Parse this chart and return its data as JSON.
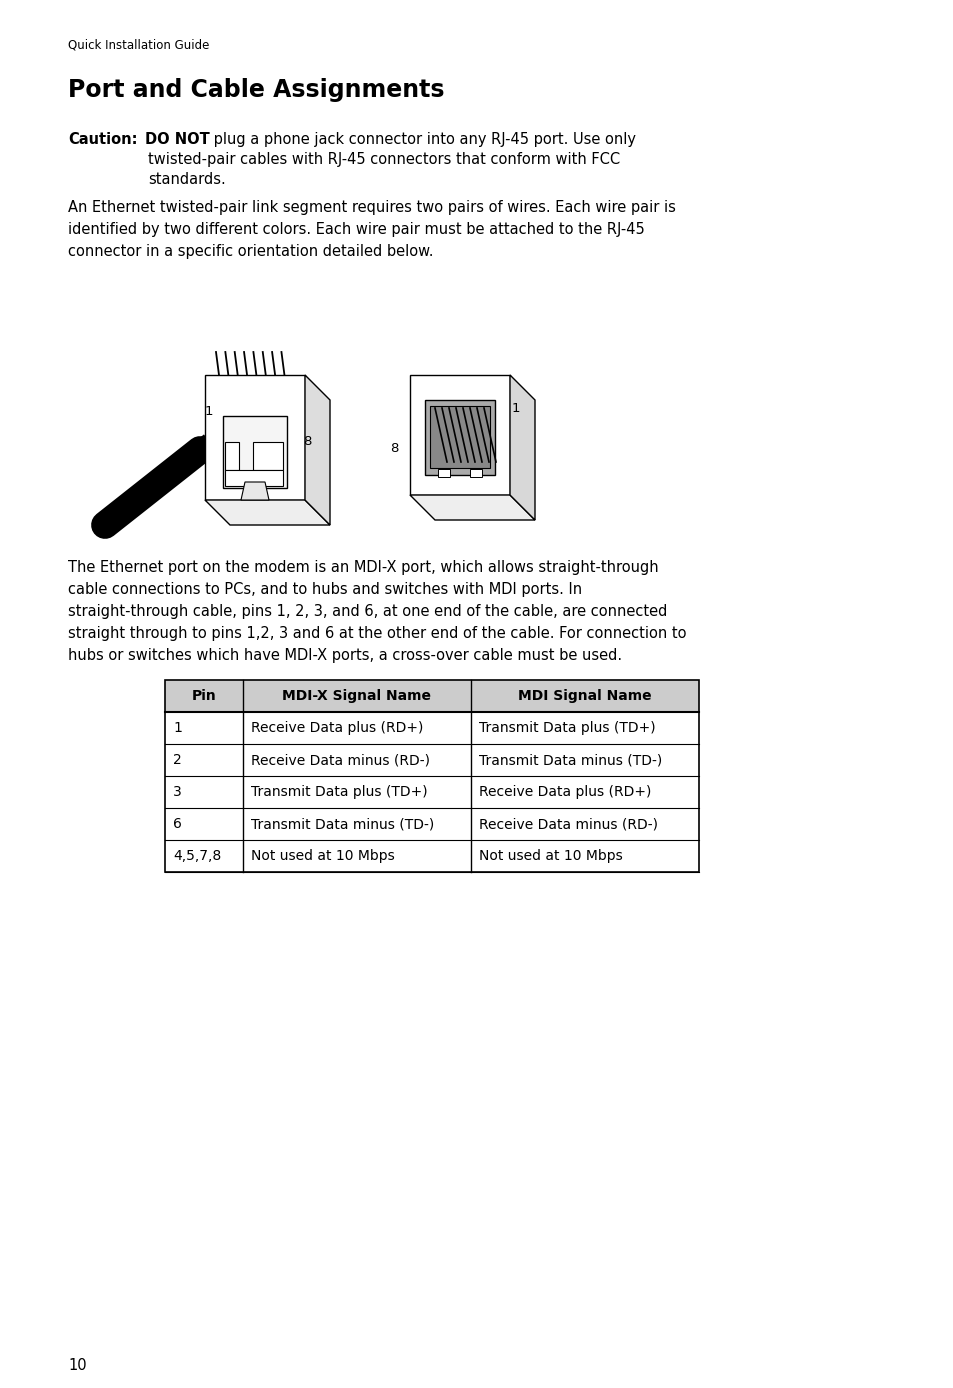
{
  "page_header": "Quick Installation Guide",
  "title": "Port and Cable Assignments",
  "caution_label": "Caution:",
  "caution_bold": "DO NOT",
  "caution_rest": " plug a phone jack connector into any RJ-45 port. Use only",
  "caution_line2": "twisted-pair cables with RJ-45 connectors that conform with FCC",
  "caution_line3": "standards.",
  "paragraph1_lines": [
    "An Ethernet twisted-pair link segment requires two pairs of wires. Each wire pair is",
    "identified by two different colors. Each wire pair must be attached to the RJ-45",
    "connector in a specific orientation detailed below."
  ],
  "paragraph2_lines": [
    "The Ethernet port on the modem is an MDI-X port, which allows straight-through",
    "cable connections to PCs, and to hubs and switches with MDI ports. In",
    "straight-through cable, pins 1, 2, 3, and 6, at one end of the cable, are connected",
    "straight through to pins 1,2, 3 and 6 at the other end of the cable. For connection to",
    "hubs or switches which have MDI-X ports, a cross-over cable must be used."
  ],
  "table_headers": [
    "Pin",
    "MDI-X Signal Name",
    "MDI Signal Name"
  ],
  "table_rows": [
    [
      "1",
      "Receive Data plus (RD+)",
      "Transmit Data plus (TD+)"
    ],
    [
      "2",
      "Receive Data minus (RD-)",
      "Transmit Data minus (TD-)"
    ],
    [
      "3",
      "Transmit Data plus (TD+)",
      "Receive Data plus (RD+)"
    ],
    [
      "6",
      "Transmit Data minus (TD-)",
      "Receive Data minus (RD-)"
    ],
    [
      "4,5,7,8",
      "Not used at 10 Mbps",
      "Not used at 10 Mbps"
    ]
  ],
  "page_number": "10",
  "bg_color": "#ffffff",
  "text_color": "#000000",
  "header_bg": "#cccccc",
  "table_border": "#000000"
}
